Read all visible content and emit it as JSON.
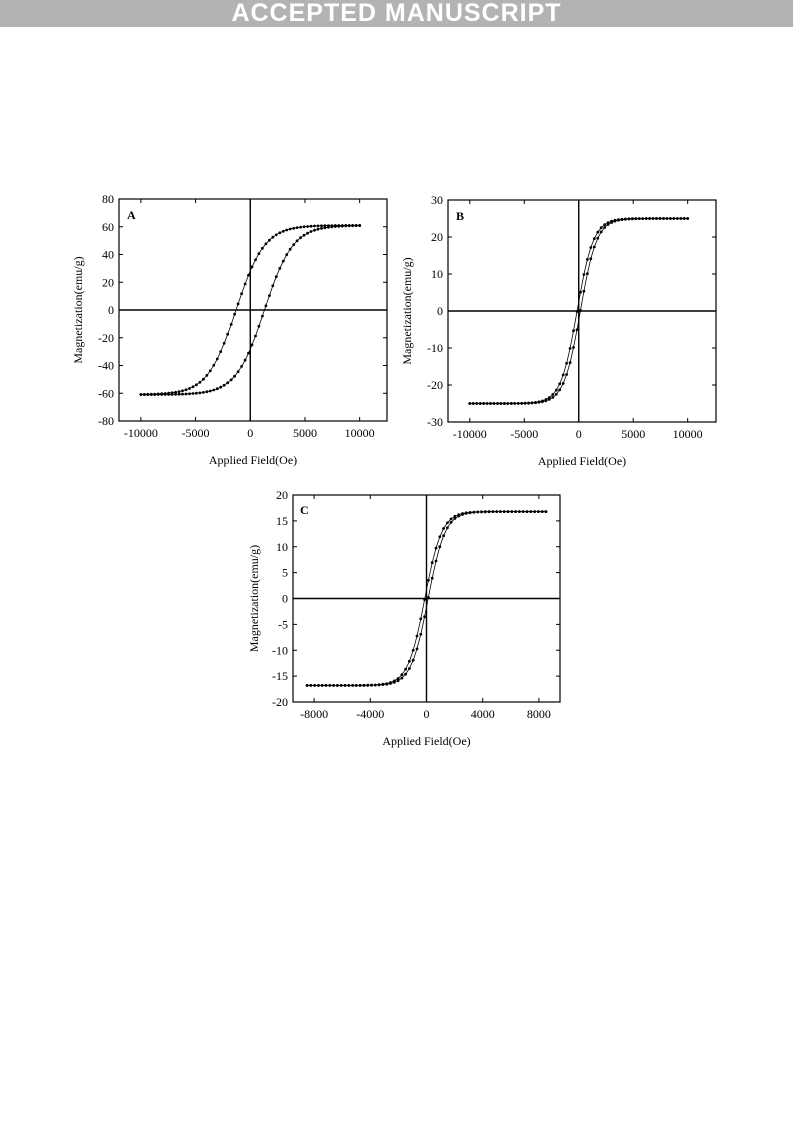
{
  "header": {
    "banner": "ACCEPTED MANUSCRIPT"
  },
  "chart_data": [
    {
      "type": "scatter",
      "panel": "A",
      "xlabel": "Applied Field(Oe)",
      "ylabel": "Magnetization(emu/g)",
      "xlim": [
        -12000,
        12500
      ],
      "ylim": [
        -80,
        80
      ],
      "xticks": [
        -10000,
        -5000,
        0,
        5000,
        10000
      ],
      "yticks": [
        -80,
        -60,
        -40,
        -20,
        0,
        20,
        40,
        60,
        80
      ],
      "xtick_labels": [
        "-10000",
        "-5000",
        "0",
        "5000",
        "10000"
      ],
      "ytick_labels": [
        "-80",
        "-60",
        "-40",
        "-20",
        "0",
        "20",
        "40",
        "60",
        "80"
      ],
      "zero_lines": true,
      "grid": false,
      "ms": 61,
      "hc": 1300,
      "w": 2600,
      "xmax": 10000,
      "points": 64
    },
    {
      "type": "scatter",
      "panel": "B",
      "xlabel": "Applied Field(Oe)",
      "ylabel": "Magnetization(emu/g)",
      "xlim": [
        -12000,
        12600
      ],
      "ylim": [
        -30,
        30
      ],
      "xticks": [
        -10000,
        -5000,
        0,
        5000,
        10000
      ],
      "yticks": [
        -30,
        -20,
        -10,
        0,
        10,
        20,
        30
      ],
      "xtick_labels": [
        "-10000",
        "-5000",
        "0",
        "5000",
        "10000"
      ],
      "ytick_labels": [
        "-30",
        "-20",
        "-10",
        "0",
        "10",
        "20",
        "30"
      ],
      "zero_lines": true,
      "grid": false,
      "ms": 25,
      "hc": 150,
      "w": 1500,
      "xmax": 10000,
      "points": 64
    },
    {
      "type": "scatter",
      "panel": "C",
      "xlabel": "Applied Field(Oe)",
      "ylabel": "Magnetization(emu/g)",
      "xlim": [
        -9500,
        9500
      ],
      "ylim": [
        -20,
        20
      ],
      "xticks": [
        -8000,
        -4000,
        0,
        4000,
        8000
      ],
      "yticks": [
        -20,
        -15,
        -10,
        -5,
        0,
        5,
        10,
        15,
        20
      ],
      "xtick_labels": [
        "-8000",
        "-4000",
        "0",
        "4000",
        "8000"
      ],
      "ytick_labels": [
        "-20",
        "-15",
        "-10",
        "-5",
        "0",
        "5",
        "10",
        "15",
        "20"
      ],
      "zero_lines": true,
      "grid": false,
      "ms": 16.8,
      "hc": 120,
      "w": 1200,
      "xmax": 8500,
      "points": 64
    }
  ]
}
